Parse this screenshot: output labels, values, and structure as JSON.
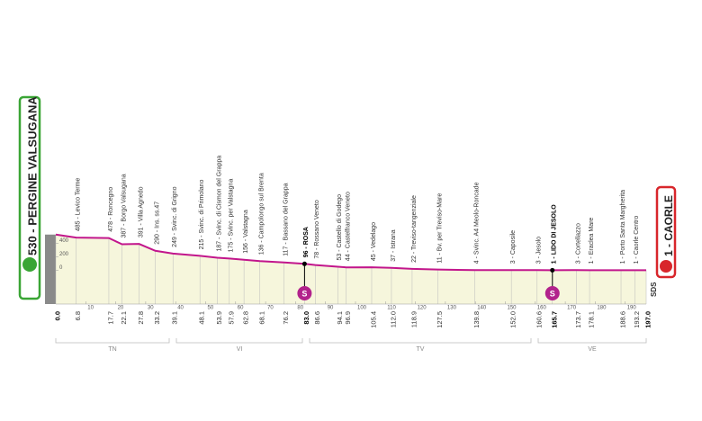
{
  "chart_data": {
    "type": "area",
    "x": [
      {
        "value": 0,
        "label": "0.0"
      },
      6.8,
      17.7,
      22.1,
      27.8,
      33.2,
      39.1,
      48.1,
      53.9,
      57.9,
      62.8,
      68.1,
      76.2,
      {
        "value": 83,
        "label": "83.0"
      },
      86.6,
      94.1,
      96.9,
      105.4,
      {
        "value": 112,
        "label": "112.0"
      },
      118.9,
      127.5,
      139.8,
      {
        "value": 152,
        "label": "152.0"
      },
      160.6,
      165.7,
      173.7,
      178.1,
      188.6,
      193.2,
      {
        "value": 197,
        "label": "197.0"
      }
    ],
    "values": [
      530,
      485,
      478,
      387,
      391,
      290,
      249,
      215,
      187,
      175,
      156,
      136,
      117,
      96,
      78,
      53,
      44,
      45,
      37,
      22,
      11,
      4,
      3,
      3,
      1,
      3,
      1,
      1,
      1,
      1
    ],
    "value_labels": [
      "530 - PERGINE VALSUGANA",
      "485 - Levico Terme",
      "478 - Roncegno",
      "387 - Borgo Valsugana",
      "391 - Villa Agnedo",
      "290 - Ins. ss.47",
      "249 - Svinc. di Grigno",
      "215 - Svinc. di Primolano",
      "187 - Svinc. di Cismon del Grappa",
      "175 - Svinc. per Valstagna",
      "156 - Valstagna",
      "136 - Campolongo sul Brenta",
      "117 - Bassano del Grappa",
      "96 - ROSA",
      "78 - Rossano Veneto",
      "53 - Castello di Godego",
      "44 - Castelfranco Veneto",
      "45 - Vedelago",
      "37 - Istrana",
      "22 - Treviso-tangenziale",
      "11 - Bv. per Treviso-Mare",
      "4 - Svinc. A4 Meolo-Roncade",
      "3 - Caposile",
      "3 - Jesolo",
      "1 - LIDO DI JESOLO",
      "3 - Cortellazzo",
      "1 - Eraclea Mare",
      "1 - Porto Santa Margherita",
      "1 - Caorle Centro",
      "1 - CAORLE"
    ],
    "color": "#c2168c",
    "fill": "#f6f6dc",
    "xlim": [
      0,
      197
    ],
    "xticks": [
      10,
      20,
      30,
      40,
      50,
      60,
      70,
      80,
      90,
      100,
      110,
      120,
      130,
      140,
      150,
      160,
      170,
      180,
      190
    ],
    "ylim": [
      -500,
      600
    ],
    "yticks": [
      0,
      200,
      400
    ],
    "sprints": [
      {
        "km": 83,
        "symbol": "S"
      },
      {
        "km": 165.7,
        "symbol": "S"
      }
    ],
    "regions": [
      "TN",
      "VI",
      "TV",
      "VE"
    ]
  },
  "brand": "SDS"
}
